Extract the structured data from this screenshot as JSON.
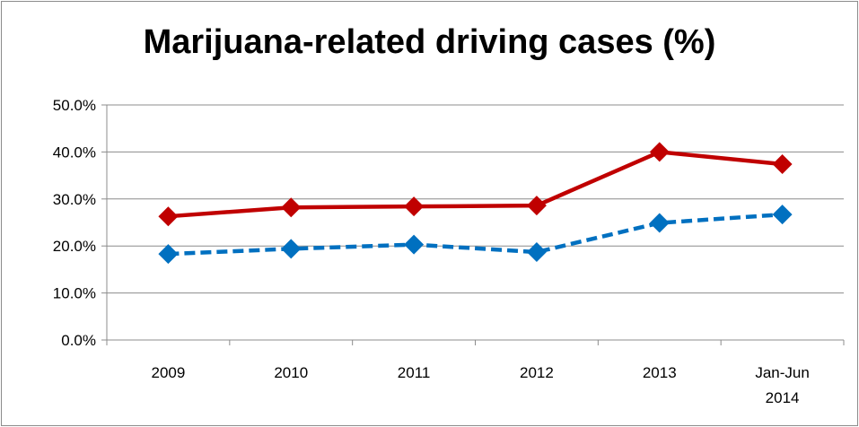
{
  "chart_data": {
    "type": "line",
    "title": "Marijuana-related driving cases (%)",
    "xlabel": "",
    "ylabel": "",
    "categories": [
      "2009",
      "2010",
      "2011",
      "2012",
      "2013",
      [
        "Jan-Jun",
        "2014"
      ]
    ],
    "ylim": [
      0,
      50
    ],
    "yticks": [
      "0.0%",
      "10.0%",
      "20.0%",
      "30.0%",
      "40.0%",
      "50.0%"
    ],
    "grid": true,
    "legend": "none",
    "series": [
      {
        "values": [
          26.3,
          28.2,
          28.4,
          28.6,
          40.0,
          37.4
        ],
        "color": "#c00000",
        "line_style": "solid",
        "marker": "diamond"
      },
      {
        "values": [
          18.3,
          19.4,
          20.3,
          18.7,
          24.9,
          26.7
        ],
        "color": "#0070c0",
        "line_style": "dashed",
        "marker": "diamond"
      }
    ]
  }
}
